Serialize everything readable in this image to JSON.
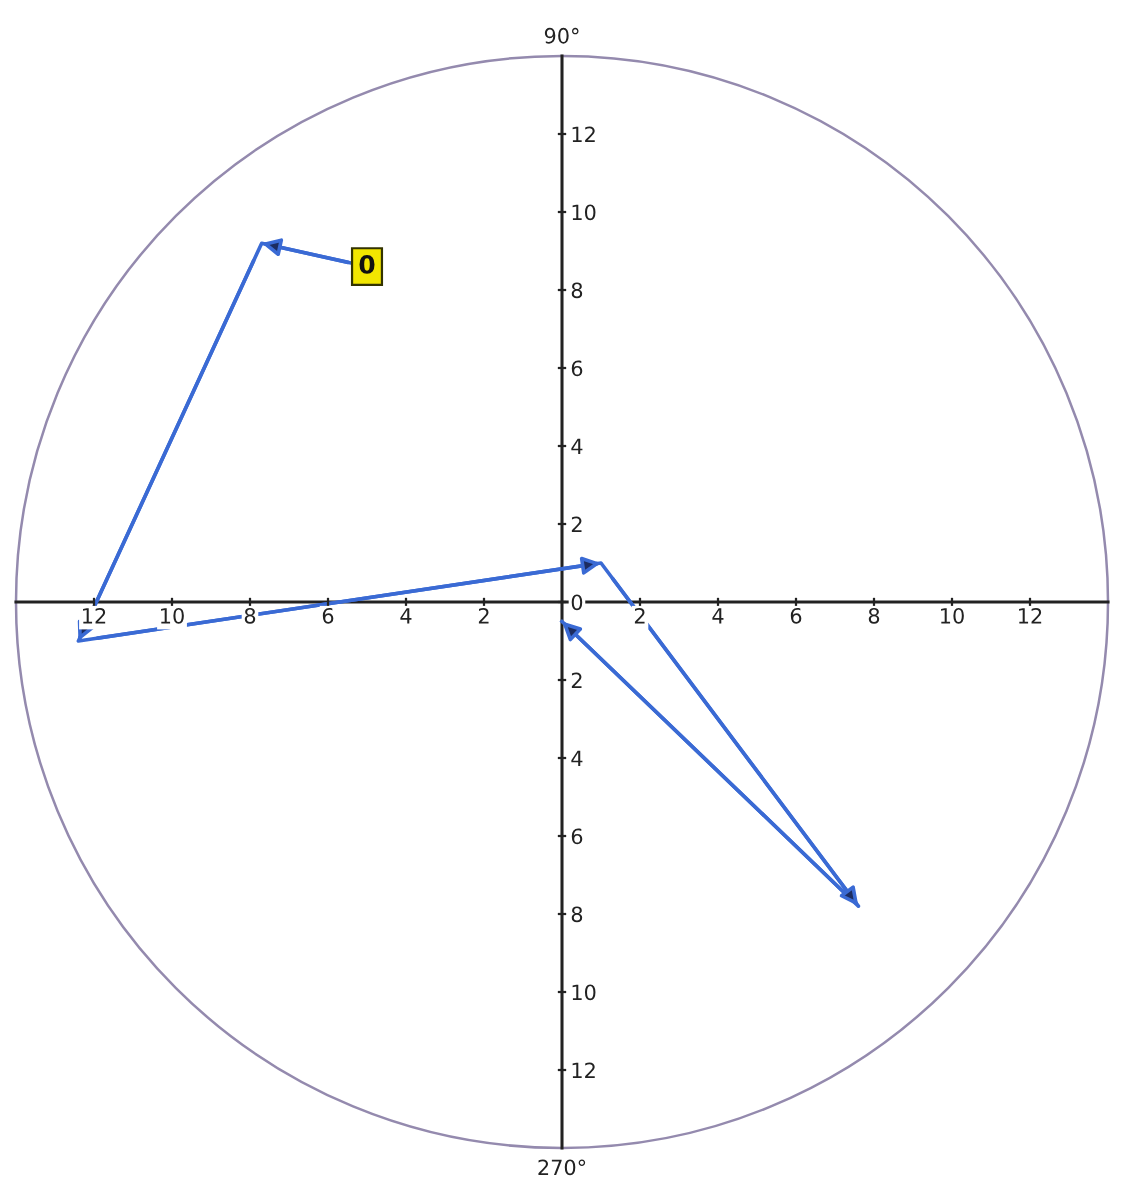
{
  "chart_data": {
    "type": "line",
    "series": [
      {
        "color": "#3a6ad4",
        "x": [
          -5.0,
          -7.7,
          -12.4,
          1.0,
          7.6,
          0.0
        ],
        "values": [
          8.6,
          9.2,
          -1.0,
          1.0,
          -7.8,
          -0.5
        ]
      }
    ],
    "xlim": [
      -14,
      14
    ],
    "ylim": [
      -14,
      14
    ],
    "xticks": [
      {
        "value": -12,
        "label": "12"
      },
      {
        "value": -10,
        "label": "10"
      },
      {
        "value": -8,
        "label": "8"
      },
      {
        "value": -6,
        "label": "6"
      },
      {
        "value": -4,
        "label": "4"
      },
      {
        "value": -2,
        "label": "2"
      },
      2,
      4,
      6,
      8,
      10,
      12
    ],
    "yticks": [
      {
        "value": -12,
        "label": "12"
      },
      {
        "value": -10,
        "label": "10"
      },
      {
        "value": -8,
        "label": "8"
      },
      {
        "value": -6,
        "label": "6"
      },
      {
        "value": -4,
        "label": "4"
      },
      {
        "value": -2,
        "label": "2"
      },
      0,
      2,
      4,
      6,
      8,
      10,
      12
    ],
    "line_style": "solid",
    "annotations": [
      {
        "text": "0",
        "x": -5.0,
        "y": 8.6
      },
      "90°",
      "270°"
    ]
  }
}
